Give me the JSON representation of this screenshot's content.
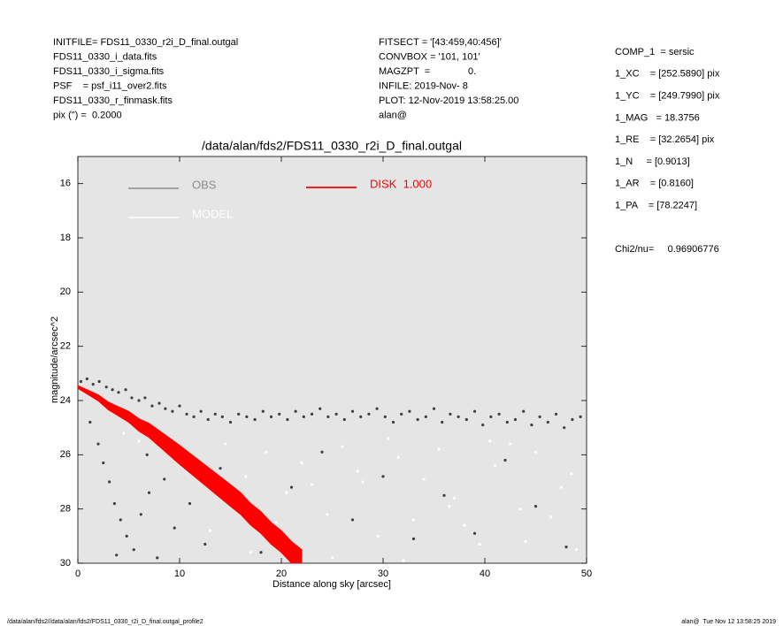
{
  "chart_data": {
    "type": "scatter",
    "title": "/data/alan/fds2/FDS11_0330_r2i_D_final.outgal",
    "x_label": "Distance along sky [arcsec]",
    "y_label": "magnitude/arcsec^2",
    "header_left": [
      "INITFILE= FDS11_0330_r2i_D_final.outgal",
      "FDS11_0330_i_data.fits",
      "FDS11_0330_i_sigma.fits",
      "PSF    = psf_i11_over2.fits",
      "FDS11_0330_r_finmask.fits",
      "pix (\") =  0.2000"
    ],
    "header_middle": [
      "FITSECT = '[43:459,40:456]'",
      "CONVBOX = '101, 101'",
      "MAGZPT  =              0.",
      "INFILE: 2019-Nov- 8",
      "PLOT: 12-Nov-2019 13:58:25.00",
      "alan@"
    ],
    "header_right": [
      "COMP_1  = sersic",
      "1_XC    = [252.5890] pix",
      "1_YC    = [249.7990] pix",
      "1_MAG   = 18.3756",
      "1_RE    = [32.2654] pix",
      "1_N     = [0.9013]",
      "1_AR    = [0.8160]",
      "1_PA    = [78.2247]"
    ],
    "chi2": "Chi2/nu=     0.96906776",
    "footer_left": "/data/alan/fds2//data/alan/fds2/FDS11_0330_r2i_D_final.outgal_profile2",
    "footer_right": "alan@  Tue Nov 12 13:58:25 2019",
    "xlim": [
      0,
      50
    ],
    "xticks": [
      0,
      10,
      20,
      30,
      40,
      50
    ],
    "ylim": [
      15,
      30
    ],
    "yticks": [
      16,
      18,
      20,
      22,
      24,
      26,
      28,
      30
    ],
    "y_inverted": true,
    "background": "#e5e5e5",
    "series": [
      {
        "name": "OBS",
        "color": "#8c8c8c",
        "marker_color": "#3f3f3f",
        "x": [
          0.3,
          0.9,
          1.5,
          2.1,
          2.8,
          3.4,
          4.0,
          4.7,
          5.3,
          6.0,
          6.6,
          7.3,
          8.0,
          8.6,
          9.3,
          10.0,
          10.7,
          11.4,
          12.1,
          12.8,
          13.5,
          14.2,
          15.0,
          15.8,
          16.6,
          17.4,
          18.2,
          19.0,
          19.8,
          20.6,
          21.4,
          22.2,
          23.0,
          23.8,
          24.6,
          25.4,
          26.2,
          27.0,
          27.8,
          28.6,
          29.4,
          30.2,
          31.0,
          31.8,
          32.6,
          33.4,
          34.2,
          35.0,
          35.8,
          36.6,
          37.4,
          38.2,
          39.0,
          39.8,
          40.6,
          41.4,
          42.2,
          43.0,
          43.8,
          44.6,
          45.4,
          46.2,
          47.0,
          47.8,
          48.6,
          49.4,
          1.2,
          2.0,
          2.5,
          3.1,
          3.6,
          4.2,
          4.8,
          5.5,
          6.2,
          7.0,
          7.8,
          8.5,
          9.5,
          11.0,
          12.5,
          14.0,
          16.0,
          18.0,
          21.0,
          24.0,
          27.0,
          30.0,
          33.0,
          36.0,
          39.0,
          42.0,
          45.0,
          48.0,
          3.8,
          6.8
        ],
        "values": [
          23.3,
          23.2,
          23.4,
          23.3,
          23.5,
          23.6,
          23.7,
          23.6,
          23.9,
          24.0,
          23.9,
          24.2,
          24.1,
          24.3,
          24.4,
          24.2,
          24.5,
          24.6,
          24.4,
          24.7,
          24.5,
          24.6,
          24.8,
          24.5,
          24.6,
          24.7,
          24.4,
          24.6,
          24.5,
          24.7,
          24.4,
          24.6,
          24.5,
          24.3,
          24.6,
          24.5,
          24.7,
          24.4,
          24.6,
          24.5,
          24.3,
          24.6,
          24.8,
          24.5,
          24.4,
          24.7,
          24.6,
          24.3,
          24.8,
          24.5,
          24.6,
          24.7,
          24.4,
          24.9,
          24.6,
          24.5,
          24.8,
          24.7,
          24.4,
          24.9,
          24.6,
          24.8,
          24.5,
          25.0,
          24.7,
          24.6,
          24.8,
          25.6,
          26.3,
          27.0,
          27.8,
          28.4,
          29.0,
          29.5,
          28.2,
          27.4,
          29.8,
          26.9,
          28.7,
          27.8,
          29.3,
          26.5,
          28.0,
          29.6,
          27.2,
          25.9,
          28.4,
          26.8,
          29.1,
          27.5,
          28.9,
          26.2,
          27.9,
          29.4,
          29.7,
          26.0
        ]
      },
      {
        "name": "MODEL",
        "color": "#ffffff",
        "marker_color": "#ffffff",
        "x": [
          4.5,
          6.0,
          8.0,
          10.5,
          12.0,
          14.5,
          16.5,
          18.5,
          20.5,
          22.0,
          24.5,
          26.0,
          28.0,
          29.5,
          31.5,
          33.0,
          35.5,
          37.0,
          39.5,
          41.0,
          43.5,
          45.0,
          47.5,
          49.0,
          13.0,
          17.0,
          25.0,
          30.5,
          34.0,
          38.0,
          42.5,
          46.5,
          27.5,
          32.0,
          36.5,
          40.5,
          44.0,
          48.5,
          19.5,
          23.0
        ],
        "values": [
          25.2,
          25.5,
          25.4,
          25.8,
          26.5,
          25.6,
          26.8,
          25.9,
          27.4,
          26.3,
          28.2,
          25.7,
          27.0,
          29.0,
          26.1,
          28.4,
          25.8,
          27.6,
          29.3,
          26.4,
          28.0,
          25.9,
          27.2,
          29.5,
          28.8,
          29.6,
          29.8,
          25.4,
          26.9,
          28.6,
          25.6,
          28.3,
          26.6,
          29.9,
          27.9,
          25.5,
          29.2,
          26.7,
          28.5,
          27.1
        ]
      },
      {
        "name": "DISK  1.000",
        "color": "#ff0000",
        "band": true,
        "x": [
          0,
          1,
          2,
          3,
          4,
          5,
          6,
          7,
          8,
          9,
          10,
          11,
          12,
          13,
          14,
          15,
          16,
          17,
          18,
          19,
          20,
          21,
          22
        ],
        "low": [
          23.45,
          23.62,
          23.79,
          24.06,
          24.23,
          24.4,
          24.67,
          24.84,
          25.11,
          25.38,
          25.65,
          25.94,
          26.23,
          26.52,
          26.81,
          27.1,
          27.4,
          27.8,
          28.1,
          28.5,
          28.8,
          29.2,
          29.5
        ],
        "high": [
          23.55,
          23.78,
          24.01,
          24.34,
          24.57,
          24.8,
          25.13,
          25.36,
          25.69,
          26.02,
          26.35,
          26.66,
          26.97,
          27.28,
          27.59,
          27.9,
          28.2,
          28.6,
          28.9,
          29.3,
          29.6,
          30.0,
          30.3
        ]
      }
    ]
  }
}
